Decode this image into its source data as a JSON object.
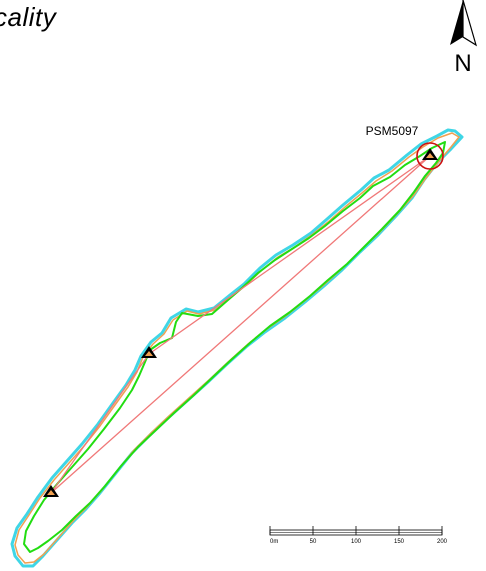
{
  "map": {
    "title": "cality",
    "north_arrow": {
      "letter": "N",
      "icon": "north-arrow-icon"
    },
    "stations": [
      {
        "label": "PSM5097",
        "icon": "station-triangle-icon",
        "highlighted": true
      },
      {
        "label": "",
        "icon": "station-triangle-icon",
        "highlighted": false
      },
      {
        "label": "",
        "icon": "station-triangle-icon",
        "highlighted": false
      }
    ],
    "scale_bar": {
      "ticks": [
        "0m",
        "50",
        "100",
        "150",
        "200"
      ]
    },
    "colors": {
      "outline_cyan": "#3fd6e6",
      "outline_orange": "#f0a050",
      "outline_green": "#22dd11",
      "traverse_line": "#f07878",
      "station_circle": "#cc1111",
      "station_fill": "#000000"
    }
  }
}
